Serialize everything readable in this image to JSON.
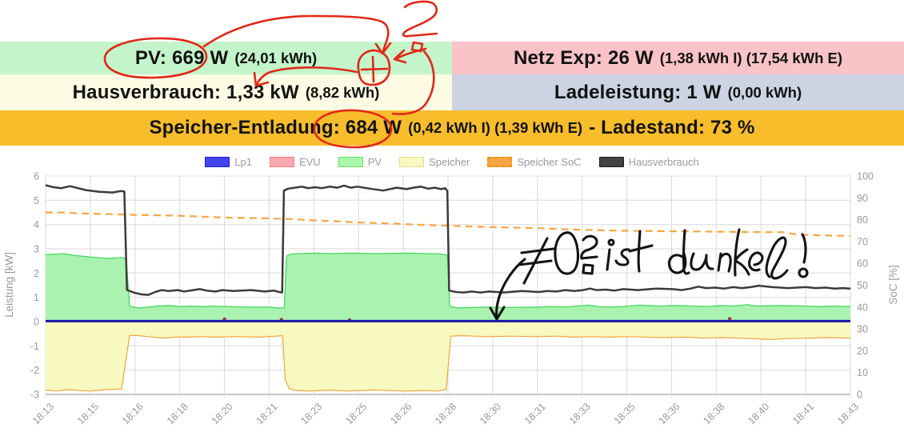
{
  "header": {
    "rows": [
      {
        "cells": [
          {
            "main": "PV: 669 W",
            "paren": "(24,01 kWh)",
            "bg": "#c4f4ca"
          },
          {
            "main": "Netz Exp: 26 W",
            "paren": "(1,38 kWh I) (17,54 kWh E)",
            "bg": "#f9c3c7"
          }
        ]
      },
      {
        "cells": [
          {
            "main": "Hausverbrauch: 1,33 kW",
            "paren": "(8,82 kWh)",
            "bg": "#fdfbe4"
          },
          {
            "main": "Ladeleistung: 1 W",
            "paren": "(0,00 kWh)",
            "bg": "#ccd4e3"
          }
        ]
      },
      {
        "cells": [
          {
            "main": "Speicher-Entladung: 684 W",
            "paren": "(0,42 kWh I) (1,39 kWh E)",
            "main2": "- Ladestand: 73 %",
            "bg": "#f8bd2b"
          }
        ]
      }
    ]
  },
  "legend": [
    {
      "label": "Lp1",
      "fill": "#4343ef",
      "border": "#2020c8",
      "dashed": false
    },
    {
      "label": "EVU",
      "fill": "#f9a9ad",
      "border": "#ef8086",
      "dashed": false
    },
    {
      "label": "PV",
      "fill": "#abf7ab",
      "border": "#62e062",
      "dashed": false
    },
    {
      "label": "Speicher",
      "fill": "#f8f9c0",
      "border": "#e0e08a",
      "dashed": false
    },
    {
      "label": "Speicher SoC",
      "fill": "#f6a744",
      "border": "#ef9416",
      "dashed": true
    },
    {
      "label": "Hausverbrauch",
      "fill": "#424242",
      "border": "#1c1c1c",
      "dashed": false
    }
  ],
  "chart_data": {
    "type": "line",
    "title": "",
    "xlabel": "",
    "ylabel_left": "Leistung [kW]",
    "ylabel_right": "SoC [%]",
    "x_tick_labels": [
      "18:13",
      "18:15",
      "18:16",
      "18:18",
      "18:20",
      "18:21",
      "18:23",
      "18:25",
      "18:26",
      "18:28",
      "18:30",
      "18:31",
      "18:33",
      "18:35",
      "18:36",
      "18:38",
      "18:40",
      "18:41",
      "18:43"
    ],
    "x_tick_minutes": [
      0,
      2,
      3,
      5,
      7,
      8,
      10,
      12,
      13,
      15,
      17,
      18,
      20,
      22,
      23,
      25,
      27,
      28,
      30
    ],
    "y_left": {
      "min": -3,
      "max": 6,
      "step": 1,
      "color": "#999999"
    },
    "y_right": {
      "min": 0,
      "max": 100,
      "step": 10,
      "color": "#999999"
    },
    "grid_color": "#d9d9d9",
    "axis_color": "#8c8c8c",
    "series": [
      {
        "name": "PV",
        "kind": "area",
        "axis": "left",
        "stroke": "#4fd965",
        "fill": "#aaf2b0",
        "width": 1.4,
        "points": [
          [
            0,
            2.76
          ],
          [
            0.4,
            2.78
          ],
          [
            0.8,
            2.8
          ],
          [
            1.2,
            2.74
          ],
          [
            1.6,
            2.7
          ],
          [
            2,
            2.66
          ],
          [
            2.4,
            2.6
          ],
          [
            2.7,
            2.64
          ],
          [
            2.8,
            2.6
          ],
          [
            2.88,
            0.62
          ],
          [
            3.2,
            0.56
          ],
          [
            3.6,
            0.6
          ],
          [
            4,
            0.64
          ],
          [
            4.5,
            0.66
          ],
          [
            5,
            0.62
          ],
          [
            5.5,
            0.64
          ],
          [
            6,
            0.62
          ],
          [
            6.5,
            0.64
          ],
          [
            7,
            0.62
          ],
          [
            7.5,
            0.6
          ],
          [
            8,
            0.6
          ],
          [
            8.4,
            0.56
          ],
          [
            8.68,
            0.56
          ],
          [
            8.78,
            2.7
          ],
          [
            8.95,
            2.78
          ],
          [
            9.3,
            2.8
          ],
          [
            10,
            2.82
          ],
          [
            10.8,
            2.8
          ],
          [
            11.6,
            2.82
          ],
          [
            12.4,
            2.8
          ],
          [
            13.2,
            2.82
          ],
          [
            14,
            2.8
          ],
          [
            14.6,
            2.8
          ],
          [
            14.98,
            2.74
          ],
          [
            15.08,
            0.62
          ],
          [
            15.45,
            0.56
          ],
          [
            16,
            0.58
          ],
          [
            16.6,
            0.6
          ],
          [
            17.2,
            0.58
          ],
          [
            18,
            0.6
          ],
          [
            18.6,
            0.62
          ],
          [
            19.2,
            0.6
          ],
          [
            19.8,
            0.64
          ],
          [
            20.3,
            0.68
          ],
          [
            20.7,
            0.62
          ],
          [
            21.2,
            0.6
          ],
          [
            21.8,
            0.62
          ],
          [
            22.3,
            0.68
          ],
          [
            22.7,
            0.64
          ],
          [
            23.3,
            0.66
          ],
          [
            24,
            0.64
          ],
          [
            24.6,
            0.62
          ],
          [
            25.2,
            0.66
          ],
          [
            25.8,
            0.64
          ],
          [
            26.4,
            0.7
          ],
          [
            26.8,
            0.64
          ],
          [
            27.4,
            0.66
          ],
          [
            28,
            0.64
          ],
          [
            28.6,
            0.62
          ],
          [
            29.2,
            0.64
          ],
          [
            30,
            0.62
          ]
        ]
      },
      {
        "name": "Speicher",
        "kind": "area",
        "axis": "left",
        "stroke": "#f2a43a",
        "fill": "#f7f9c0",
        "width": 1.2,
        "points": [
          [
            0,
            -2.82
          ],
          [
            0.5,
            -2.86
          ],
          [
            1,
            -2.8
          ],
          [
            1.5,
            -2.84
          ],
          [
            2,
            -2.86
          ],
          [
            2.4,
            -2.8
          ],
          [
            2.7,
            -2.78
          ],
          [
            2.88,
            -0.56
          ],
          [
            3.2,
            -0.58
          ],
          [
            3.6,
            -0.62
          ],
          [
            4,
            -0.66
          ],
          [
            4.4,
            -0.68
          ],
          [
            4.8,
            -0.64
          ],
          [
            5.4,
            -0.64
          ],
          [
            6,
            -0.62
          ],
          [
            6.6,
            -0.64
          ],
          [
            7.2,
            -0.62
          ],
          [
            7.8,
            -0.64
          ],
          [
            8.3,
            -0.6
          ],
          [
            8.6,
            -0.58
          ],
          [
            8.72,
            -2.4
          ],
          [
            8.9,
            -2.76
          ],
          [
            9.2,
            -2.84
          ],
          [
            9.9,
            -2.86
          ],
          [
            10.7,
            -2.82
          ],
          [
            11.5,
            -2.86
          ],
          [
            12.3,
            -2.82
          ],
          [
            13.1,
            -2.86
          ],
          [
            13.9,
            -2.84
          ],
          [
            14.5,
            -2.86
          ],
          [
            14.92,
            -2.8
          ],
          [
            15.12,
            -0.6
          ],
          [
            15.6,
            -0.58
          ],
          [
            16.2,
            -0.6
          ],
          [
            16.8,
            -0.62
          ],
          [
            17.4,
            -0.6
          ],
          [
            18,
            -0.62
          ],
          [
            18.8,
            -0.6
          ],
          [
            19.6,
            -0.64
          ],
          [
            20.4,
            -0.62
          ],
          [
            21.2,
            -0.64
          ],
          [
            22,
            -0.62
          ],
          [
            22.8,
            -0.66
          ],
          [
            23.6,
            -0.64
          ],
          [
            24.4,
            -0.68
          ],
          [
            25.2,
            -0.66
          ],
          [
            26,
            -0.68
          ],
          [
            26.6,
            -0.7
          ],
          [
            27.2,
            -0.74
          ],
          [
            27.6,
            -0.7
          ],
          [
            28.2,
            -0.68
          ],
          [
            29,
            -0.66
          ],
          [
            30,
            -0.68
          ]
        ]
      },
      {
        "name": "EVU",
        "kind": "dots",
        "axis": "left",
        "stroke": "#a03060",
        "fill": "#a03060",
        "width": 2,
        "points": [
          [
            7,
            0.1
          ],
          [
            8.55,
            0.08
          ],
          [
            11.6,
            0.07
          ],
          [
            25.6,
            0.12
          ]
        ]
      },
      {
        "name": "Speicher SoC",
        "kind": "line",
        "axis": "right",
        "stroke": "#f6a744",
        "fill": "none",
        "width": 2.2,
        "dash": "9 6",
        "points": [
          [
            0,
            83.3
          ],
          [
            0.8,
            83.3
          ],
          [
            1.3,
            83
          ],
          [
            2,
            82.8
          ],
          [
            2.6,
            82.4
          ],
          [
            3,
            82.2
          ],
          [
            4,
            82
          ],
          [
            5,
            81.8
          ],
          [
            6,
            81.4
          ],
          [
            7,
            81
          ],
          [
            8,
            80.6
          ],
          [
            8.6,
            80.4
          ],
          [
            9.2,
            80.2
          ],
          [
            9.7,
            79.8
          ],
          [
            10.5,
            79.5
          ],
          [
            11.3,
            79.1
          ],
          [
            12,
            78.7
          ],
          [
            12.8,
            78.2
          ],
          [
            13.4,
            77.8
          ],
          [
            14.2,
            77.5
          ],
          [
            15,
            77.2
          ],
          [
            16,
            76.9
          ],
          [
            17,
            76.6
          ],
          [
            18,
            76.1
          ],
          [
            19,
            75.7
          ],
          [
            20,
            75.4
          ],
          [
            21,
            75.1
          ],
          [
            22,
            74.9
          ],
          [
            23,
            74.7
          ],
          [
            24,
            74.6
          ],
          [
            25,
            74.5
          ],
          [
            26,
            74.4
          ],
          [
            27,
            74.3
          ],
          [
            27.5,
            74.3
          ],
          [
            27.8,
            73.2
          ],
          [
            28.5,
            72.9
          ],
          [
            29.2,
            72.7
          ],
          [
            30,
            72.6
          ]
        ]
      },
      {
        "name": "Hausverbrauch",
        "kind": "line",
        "axis": "left",
        "stroke": "#3b3b3b",
        "fill": "none",
        "width": 2.5,
        "points": [
          [
            0,
            5.62
          ],
          [
            0.3,
            5.55
          ],
          [
            0.7,
            5.5
          ],
          [
            1.1,
            5.58
          ],
          [
            1.45,
            5.5
          ],
          [
            1.8,
            5.42
          ],
          [
            2.2,
            5.35
          ],
          [
            2.5,
            5.32
          ],
          [
            2.68,
            5.38
          ],
          [
            2.76,
            5.36
          ],
          [
            2.82,
            1.3
          ],
          [
            3,
            1.18
          ],
          [
            3.3,
            1.12
          ],
          [
            3.6,
            1.1
          ],
          [
            3.9,
            1.22
          ],
          [
            4.2,
            1.3
          ],
          [
            4.5,
            1.26
          ],
          [
            4.9,
            1.3
          ],
          [
            5.2,
            1.24
          ],
          [
            5.6,
            1.3
          ],
          [
            5.9,
            1.34
          ],
          [
            6.2,
            1.28
          ],
          [
            6.6,
            1.24
          ],
          [
            6.9,
            1.3
          ],
          [
            7.2,
            1.26
          ],
          [
            7.6,
            1.3
          ],
          [
            7.9,
            1.24
          ],
          [
            8.2,
            1.28
          ],
          [
            8.45,
            1.22
          ],
          [
            8.58,
            1.2
          ],
          [
            8.66,
            5.4
          ],
          [
            8.85,
            5.48
          ],
          [
            9.15,
            5.52
          ],
          [
            9.45,
            5.56
          ],
          [
            9.75,
            5.5
          ],
          [
            10.05,
            5.54
          ],
          [
            10.35,
            5.5
          ],
          [
            10.7,
            5.56
          ],
          [
            11.05,
            5.52
          ],
          [
            11.35,
            5.6
          ],
          [
            11.65,
            5.52
          ],
          [
            11.95,
            5.56
          ],
          [
            12.25,
            5.48
          ],
          [
            12.55,
            5.4
          ],
          [
            12.85,
            5.52
          ],
          [
            13.15,
            5.46
          ],
          [
            13.45,
            5.52
          ],
          [
            13.8,
            5.56
          ],
          [
            14.1,
            5.48
          ],
          [
            14.4,
            5.52
          ],
          [
            14.7,
            5.46
          ],
          [
            14.88,
            5.5
          ],
          [
            14.97,
            5.38
          ],
          [
            15.05,
            1.28
          ],
          [
            15.35,
            1.22
          ],
          [
            15.7,
            1.2
          ],
          [
            16.05,
            1.24
          ],
          [
            16.45,
            1.2
          ],
          [
            16.85,
            1.24
          ],
          [
            17.25,
            1.2
          ],
          [
            17.65,
            1.26
          ],
          [
            18.05,
            1.22
          ],
          [
            18.45,
            1.26
          ],
          [
            18.85,
            1.24
          ],
          [
            19.25,
            1.3
          ],
          [
            19.65,
            1.26
          ],
          [
            20.05,
            1.3
          ],
          [
            20.35,
            1.36
          ],
          [
            20.65,
            1.3
          ],
          [
            21.05,
            1.32
          ],
          [
            21.45,
            1.28
          ],
          [
            21.85,
            1.34
          ],
          [
            22.25,
            1.3
          ],
          [
            22.65,
            1.36
          ],
          [
            23.05,
            1.34
          ],
          [
            23.45,
            1.3
          ],
          [
            23.85,
            1.36
          ],
          [
            24.2,
            1.44
          ],
          [
            24.55,
            1.38
          ],
          [
            24.95,
            1.4
          ],
          [
            25.35,
            1.36
          ],
          [
            25.75,
            1.42
          ],
          [
            26.15,
            1.38
          ],
          [
            26.55,
            1.42
          ],
          [
            26.9,
            1.48
          ],
          [
            27.25,
            1.42
          ],
          [
            27.6,
            1.38
          ],
          [
            28,
            1.42
          ],
          [
            28.45,
            1.38
          ],
          [
            28.9,
            1.4
          ],
          [
            29.3,
            1.36
          ],
          [
            29.65,
            1.38
          ],
          [
            30,
            1.36
          ]
        ]
      },
      {
        "name": "Lp1",
        "kind": "line",
        "axis": "left",
        "stroke": "#1717a6",
        "fill": "none",
        "width": 3,
        "points": [
          [
            0,
            0.02
          ],
          [
            30,
            0.02
          ]
        ]
      }
    ]
  },
  "annotations": {
    "red_ink": {
      "color": "#e12717",
      "meaning": "circles around PV: 669 W and 684 W, plus sign in circle, arrows, question-mark scribble"
    },
    "black_ink": {
      "color": "#141414",
      "text": "≠0? ist dunkel!"
    }
  }
}
